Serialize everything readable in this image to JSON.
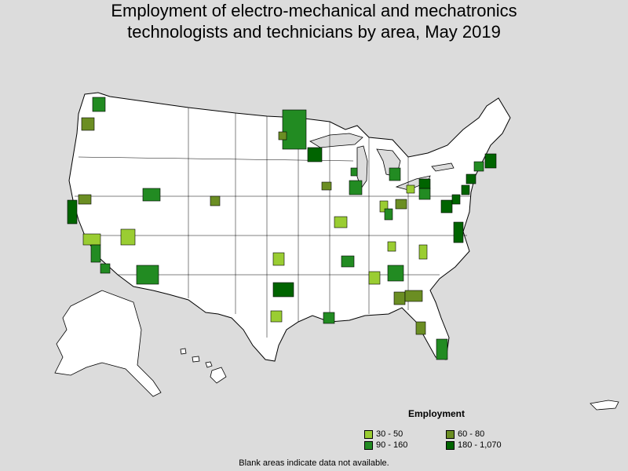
{
  "title_line1": "Employment of electro-mechanical and mechatronics",
  "title_line2": "technologists and technicians by area, May 2019",
  "legend": {
    "title": "Employment",
    "items": [
      {
        "label": "30 - 50",
        "color": "#9acd32"
      },
      {
        "label": "60 - 80",
        "color": "#6b8e23"
      },
      {
        "label": "90 - 160",
        "color": "#228b22"
      },
      {
        "label": "180 - 1,070",
        "color": "#006400"
      }
    ]
  },
  "footnote": "Blank areas indicate data not available.",
  "colors": {
    "background": "#dcdcdc",
    "land": "#ffffff",
    "border": "#000000"
  }
}
